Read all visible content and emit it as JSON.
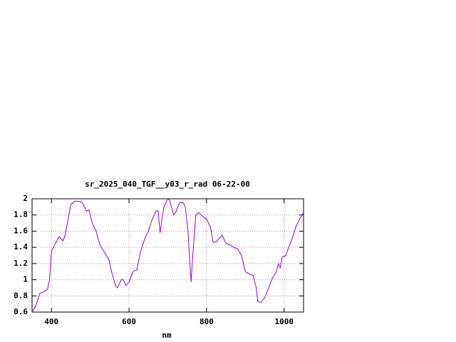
{
  "chart_data": {
    "type": "line",
    "title": "sr_2025_040_TGF__y03_r_rad 06-22-00",
    "x_label": "nm",
    "x": [
      350,
      360,
      370,
      380,
      390,
      395,
      400,
      410,
      420,
      430,
      435,
      445,
      450,
      460,
      470,
      480,
      490,
      497,
      505,
      515,
      525,
      535,
      548,
      555,
      565,
      570,
      580,
      585,
      592,
      600,
      610,
      620,
      630,
      640,
      650,
      660,
      670,
      675,
      680,
      690,
      700,
      705,
      715,
      720,
      730,
      740,
      745,
      752,
      760,
      763,
      772,
      780,
      790,
      800,
      810,
      817,
      825,
      835,
      840,
      850,
      860,
      870,
      880,
      890,
      900,
      910,
      920,
      928,
      932,
      940,
      950,
      960,
      970,
      980,
      985,
      990,
      995,
      1005,
      1010,
      1020,
      1030,
      1040,
      1050
    ],
    "series": [
      {
        "color": "#9400d3",
        "values": [
          0.6,
          0.68,
          0.83,
          0.85,
          0.88,
          1.0,
          1.35,
          1.45,
          1.53,
          1.48,
          1.55,
          1.8,
          1.93,
          1.97,
          1.97,
          1.95,
          1.85,
          1.86,
          1.7,
          1.6,
          1.43,
          1.35,
          1.25,
          1.1,
          0.93,
          0.9,
          1.0,
          1.0,
          0.93,
          0.97,
          1.1,
          1.12,
          1.35,
          1.5,
          1.6,
          1.75,
          1.85,
          1.85,
          1.58,
          1.9,
          2.0,
          1.98,
          1.8,
          1.83,
          1.95,
          1.95,
          1.9,
          1.6,
          0.97,
          1.2,
          1.8,
          1.83,
          1.78,
          1.75,
          1.65,
          1.46,
          1.47,
          1.52,
          1.55,
          1.45,
          1.43,
          1.4,
          1.38,
          1.3,
          1.1,
          1.07,
          1.05,
          0.9,
          0.73,
          0.72,
          0.78,
          0.9,
          1.02,
          1.1,
          1.2,
          1.15,
          1.28,
          1.3,
          1.38,
          1.5,
          1.65,
          1.75,
          1.83
        ]
      }
    ],
    "xlim": [
      350,
      1050
    ],
    "xticks": [
      400,
      600,
      800,
      1000
    ],
    "ylim": [
      0.6,
      2
    ],
    "yticks": [
      0.6,
      0.8,
      1,
      1.2,
      1.4,
      1.6,
      1.8,
      2
    ],
    "grid": true
  }
}
